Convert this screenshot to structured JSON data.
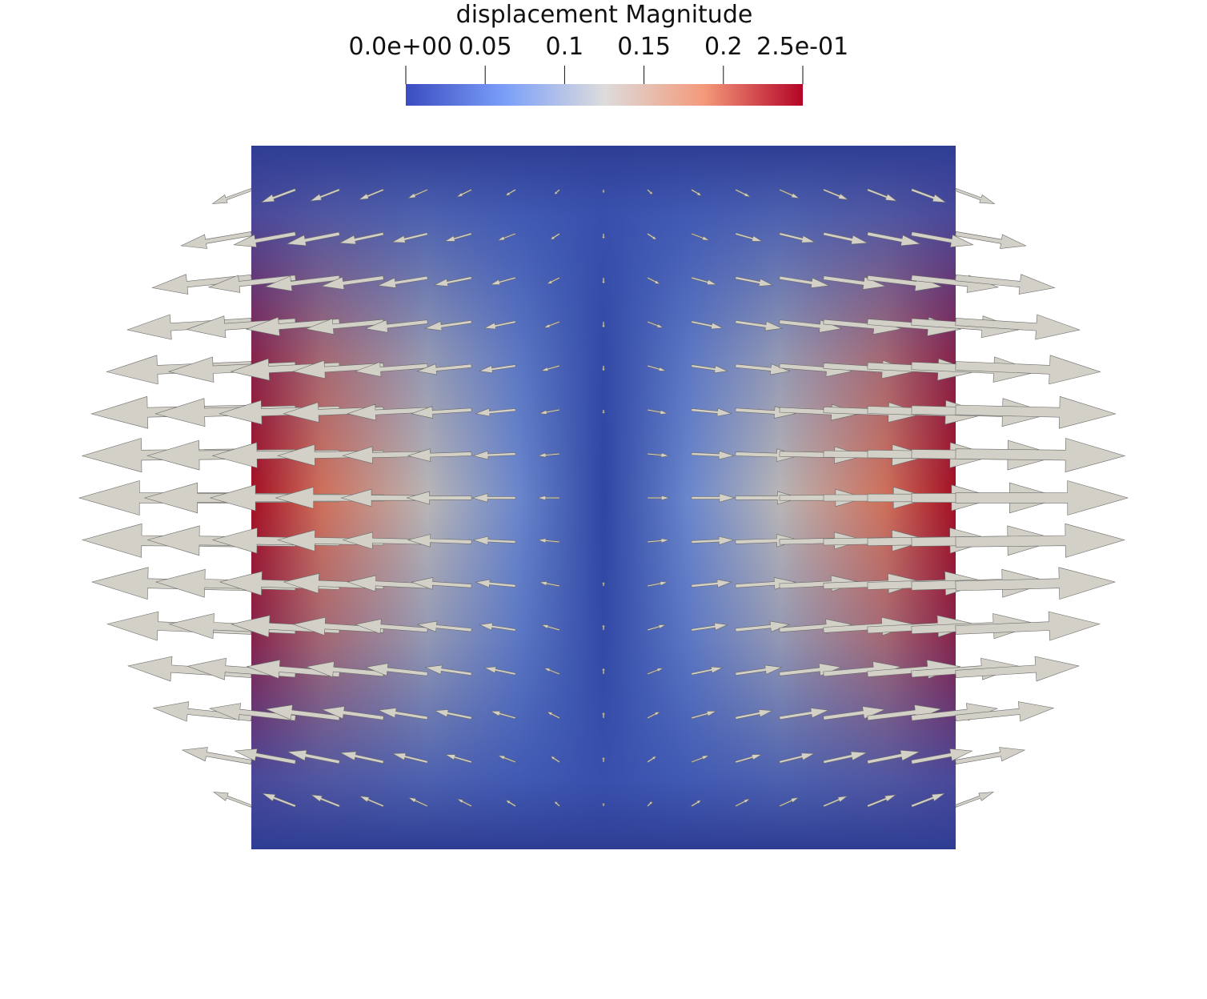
{
  "colorbar": {
    "title": "displacement Magnitude",
    "range": [
      0,
      0.25
    ],
    "ticks": [
      {
        "value": 0,
        "label": "0.0e+00"
      },
      0.05,
      0.1,
      0.15,
      0.2,
      {
        "value": 0.25,
        "label": "2.5e-01"
      }
    ]
  }
}
